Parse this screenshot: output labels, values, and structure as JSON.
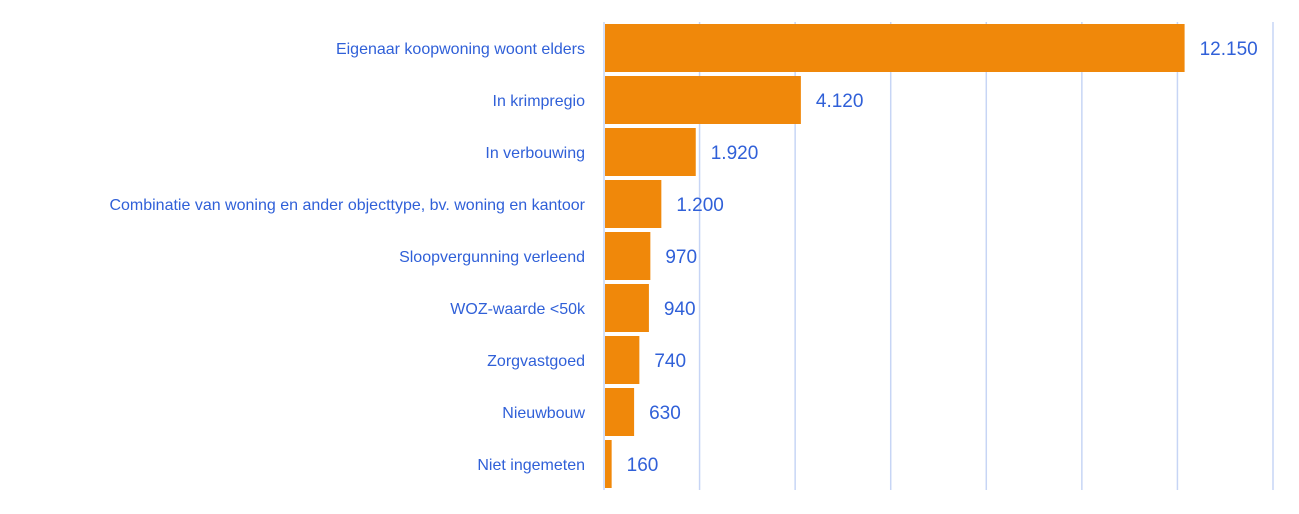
{
  "chart_data": {
    "type": "bar",
    "orientation": "horizontal",
    "categories": [
      "Eigenaar koopwoning woont elders",
      "In krimpregio",
      "In verbouwing",
      "Combinatie van woning en ander objecttype, bv. woning en kantoor",
      "Sloopvergunning verleend",
      "WOZ-waarde <50k",
      "Zorgvastgoed",
      "Nieuwbouw",
      "Niet ingemeten"
    ],
    "values": [
      12150,
      4120,
      1920,
      1200,
      970,
      940,
      740,
      630,
      160
    ],
    "value_labels": [
      "12.150",
      "4.120",
      "1.920",
      "1.200",
      "970",
      "940",
      "740",
      "630",
      "160"
    ],
    "xlim": [
      0,
      14000
    ],
    "grid_step": 2000,
    "grid": true,
    "legend": "none",
    "colors": {
      "bar": "#F0880A",
      "text": "#3060D8",
      "grid": "#C7D5F5"
    }
  }
}
